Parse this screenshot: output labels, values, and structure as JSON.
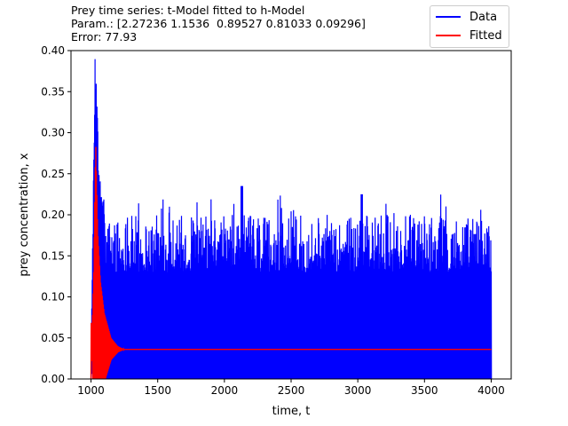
{
  "title_lines": [
    "Prey time series: t-Model fitted to h-Model",
    "Param.: [2.27236 1.1536  0.89527 0.81033 0.09296]",
    "Error: 77.93"
  ],
  "legend": {
    "items": [
      {
        "label": "Data",
        "color": "#0000ff"
      },
      {
        "label": "Fitted",
        "color": "#ff0000"
      }
    ]
  },
  "chart_data": {
    "type": "line",
    "title": "Prey time series: t-Model fitted to h-Model",
    "xlabel": "time, t",
    "ylabel": "prey concentration, x",
    "xlim": [
      850,
      4150
    ],
    "ylim": [
      0.0,
      0.4
    ],
    "xticks": [
      1000,
      1500,
      2000,
      2500,
      3000,
      3500,
      4000
    ],
    "xtick_labels": [
      "1000",
      "1500",
      "2000",
      "2500",
      "3000",
      "3500",
      "4000"
    ],
    "yticks": [
      0.0,
      0.05,
      0.1,
      0.15,
      0.2,
      0.25,
      0.3,
      0.35,
      0.4
    ],
    "ytick_labels": [
      "0.00",
      "0.05",
      "0.10",
      "0.15",
      "0.20",
      "0.25",
      "0.30",
      "0.35",
      "0.40"
    ],
    "grid": false,
    "legend_position": "top-right (outside above axes)",
    "series": [
      {
        "name": "Data",
        "color": "#0000ff",
        "description_points": {
          "x": [
            1000,
            1010,
            1030,
            1045,
            1060,
            1100,
            1200,
            1500,
            2000,
            2130,
            2500,
            3030,
            3500,
            3950,
            4000
          ],
          "y": [
            0.0,
            0.145,
            0.39,
            0.37,
            0.25,
            0.22,
            0.185,
            0.18,
            0.195,
            0.235,
            0.205,
            0.225,
            0.205,
            0.2,
            0.0
          ]
        },
        "min": 0.0,
        "typical_peak_range": [
          0.13,
          0.2
        ],
        "max": 0.39
      },
      {
        "name": "Fitted",
        "color": "#ff0000",
        "x": [
          1000,
          1020,
          1035,
          1050,
          1070,
          1100,
          1150,
          1200,
          1250,
          1300,
          4000
        ],
        "y": [
          0.0,
          0.13,
          0.29,
          0.18,
          0.12,
          0.08,
          0.05,
          0.04,
          0.036,
          0.036,
          0.036
        ],
        "steady_state": 0.036
      }
    ]
  }
}
